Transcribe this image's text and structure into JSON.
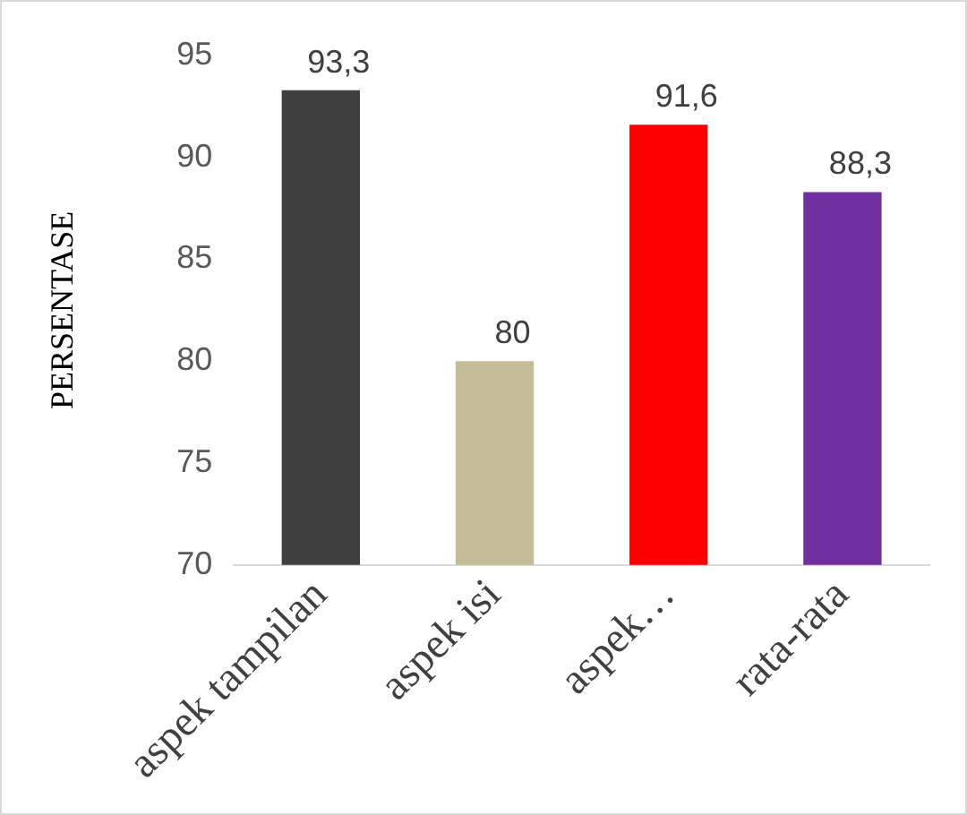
{
  "chart_data": {
    "type": "bar",
    "ylabel": "PERSENTASE",
    "categories": [
      "aspek tampilan",
      "aspek isi",
      "aspek…",
      "rata-rata"
    ],
    "values": [
      93.3,
      80,
      91.6,
      88.3
    ],
    "colors": [
      "#404040",
      "#c4bd97",
      "#ff0000",
      "#7030a0"
    ],
    "value_labels": [
      "93,3",
      "80",
      "91,6",
      "88,3"
    ],
    "ylim": [
      70,
      95
    ],
    "yticks": [
      70,
      75,
      80,
      85,
      90,
      95
    ],
    "grid": false,
    "legend": false
  }
}
